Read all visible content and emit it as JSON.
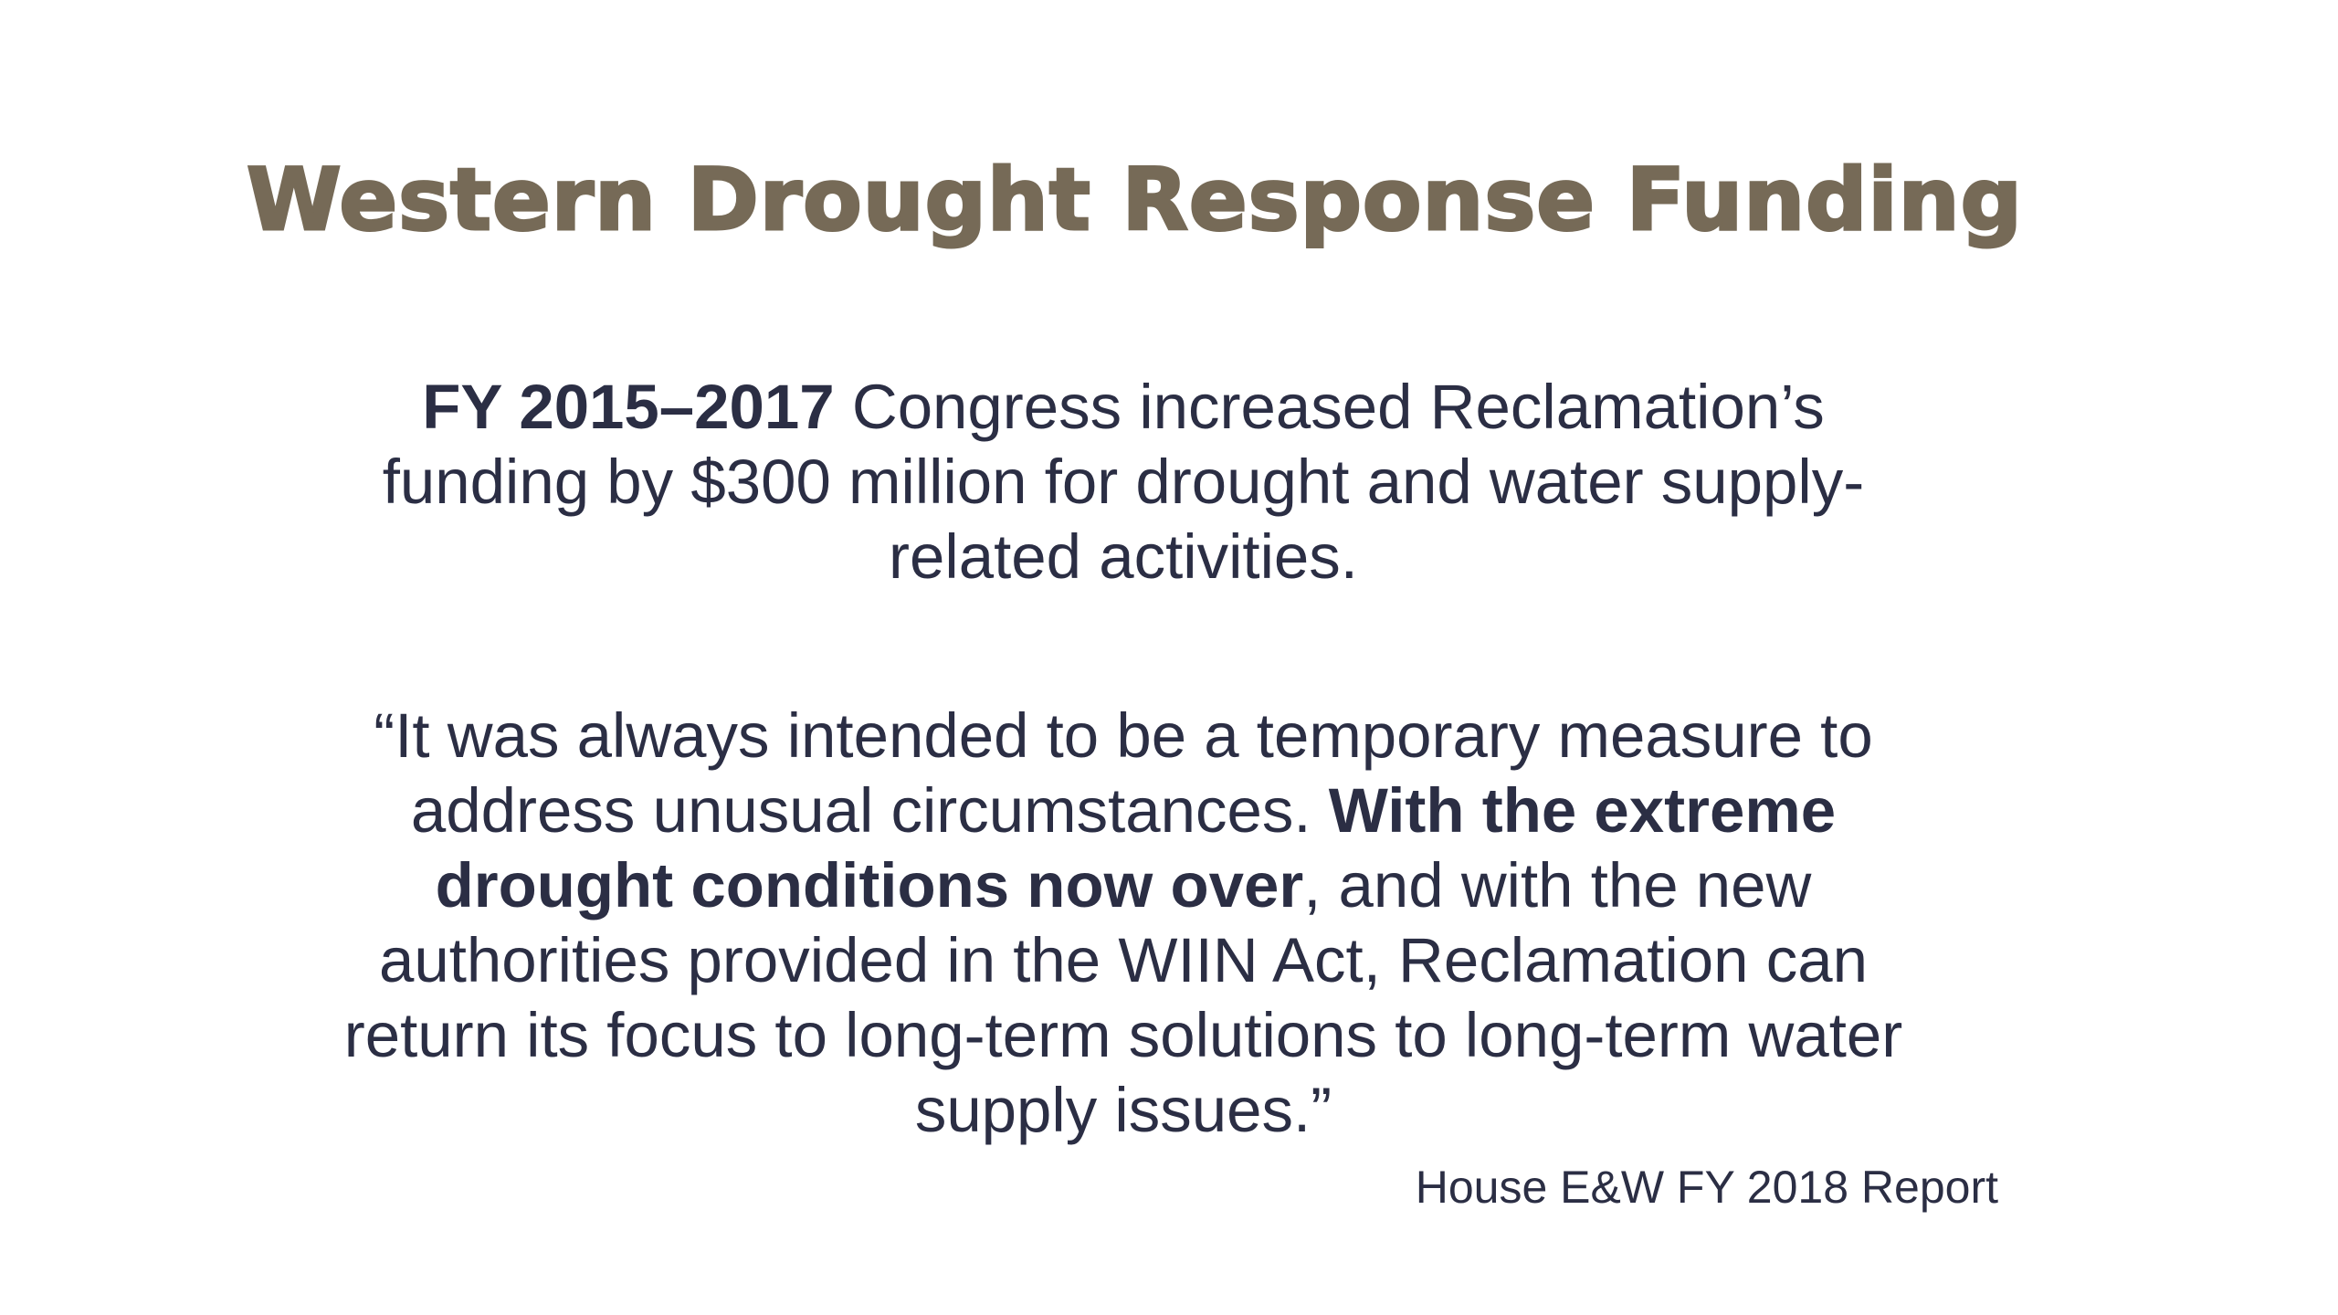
{
  "slide": {
    "title": "Western Drought Response Funding",
    "funding": {
      "years": "FY 2015–2017",
      "line1_rest": " Congress increased Reclamation’s",
      "line2": "funding by $300 million for drought and water supply-",
      "line3": "related activities."
    },
    "quote": {
      "line1": "“It was always intended to be a temporary measure to",
      "line2_plain": "address unusual circumstances. ",
      "line2_bold": "With the extreme",
      "line3_bold": "drought conditions now over",
      "line3_plain": ", and with the new",
      "line4": "authorities provided in the WIIN Act, Reclamation can",
      "line5": "return its focus to long-term solutions to long-term water",
      "line6": "supply issues.”"
    },
    "source": "House E&W FY 2018 Report"
  },
  "colors": {
    "title": "#766a57",
    "body_text": "#2b2e44",
    "background": "#ffffff"
  }
}
